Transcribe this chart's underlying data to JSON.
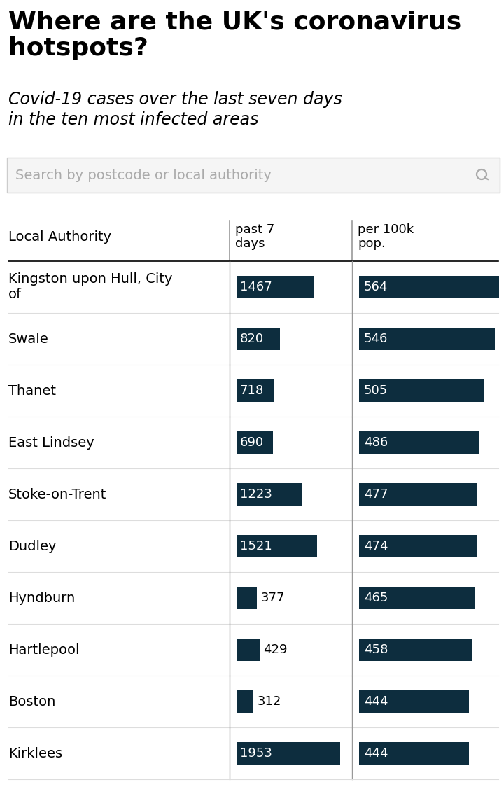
{
  "title": "Where are the UK's coronavirus\nhotspots?",
  "subtitle": "Covid-19 cases over the last seven days\nin the ten most infected areas",
  "search_placeholder": "Search by postcode or local authority",
  "header_col1": "Local Authority",
  "header_col2": "past 7\ndays",
  "header_col3": "per 100k\npop.",
  "authorities": [
    "Kingston upon Hull, City\nof",
    "Swale",
    "Thanet",
    "East Lindsey",
    "Stoke-on-Trent",
    "Dudley",
    "Hyndburn",
    "Hartlepool",
    "Boston",
    "Kirklees"
  ],
  "past7": [
    1467,
    820,
    718,
    690,
    1223,
    1521,
    377,
    429,
    312,
    1953
  ],
  "per100k": [
    564,
    546,
    505,
    486,
    477,
    474,
    465,
    458,
    444,
    444
  ],
  "max_past7": 1953,
  "max_per100k": 564,
  "bar_color": "#0d2d3e",
  "bar_text_color": "#ffffff",
  "bg_color": "#ffffff",
  "text_color": "#000000",
  "search_bg": "#f5f5f5",
  "search_text_color": "#aaaaaa",
  "header_divider_color": "#000000",
  "row_divider_color": "#dddddd",
  "col_divider_color": "#999999"
}
